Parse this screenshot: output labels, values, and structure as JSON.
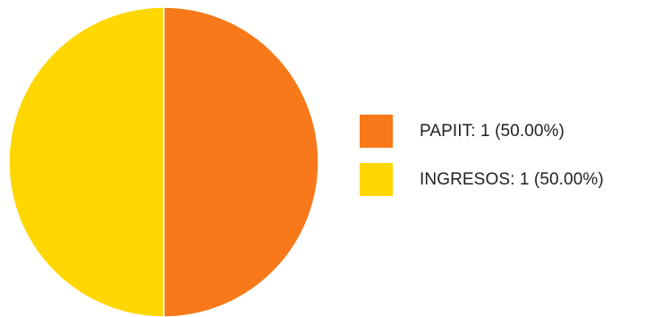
{
  "chart_data": {
    "type": "pie",
    "title": "",
    "slices": [
      {
        "name": "PAPIIT",
        "value": 1,
        "percent": 50.0,
        "label": "PAPIIT: 1 (50.00%)",
        "color": "#f7791a"
      },
      {
        "name": "INGRESOS",
        "value": 1,
        "percent": 50.0,
        "label": "INGRESOS: 1 (50.00%)",
        "color": "#ffd700"
      }
    ],
    "start_angle": "12 o'clock, clockwise",
    "legend_position": "right"
  },
  "legend": {
    "items": [
      {
        "label": "PAPIIT: 1 (50.00%)",
        "color": "#f7791a"
      },
      {
        "label": "INGRESOS: 1 (50.00%)",
        "color": "#ffd700"
      }
    ]
  }
}
